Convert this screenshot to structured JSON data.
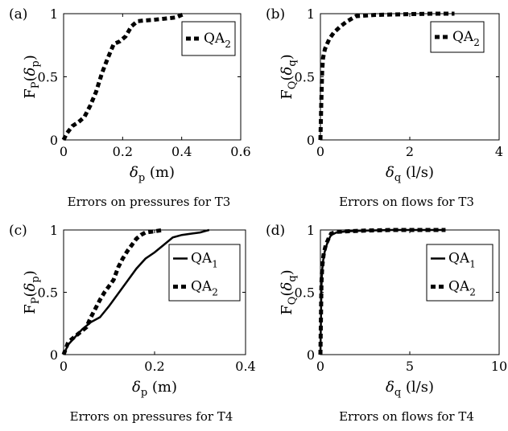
{
  "chart_data": [
    {
      "type": "line",
      "panel_label": "(a)",
      "ylabel_main": "F",
      "ylabel_sub": "P",
      "ylabel_arg": "δ",
      "ylabel_arg_sub": "p",
      "xlabel_main": "δ",
      "xlabel_sub": "p",
      "xlabel_unit": " (m)",
      "caption": "Errors on pressures for T3",
      "xlim": [
        0,
        0.6
      ],
      "ylim": [
        0,
        1
      ],
      "xticks": [
        "0",
        "0.2",
        "0.4",
        "0.6"
      ],
      "xtick_values": [
        0,
        0.2,
        0.4,
        0.6
      ],
      "yticks": [
        "0",
        "0.5",
        "1"
      ],
      "ytick_values": [
        0,
        0.5,
        1
      ],
      "legend_position": "top-right",
      "series": [
        {
          "name": "QA",
          "name_sub": "2",
          "style": "dashed",
          "x": [
            0,
            0.01,
            0.03,
            0.05,
            0.07,
            0.09,
            0.11,
            0.13,
            0.15,
            0.17,
            0.19,
            0.21,
            0.23,
            0.25,
            0.27,
            0.3,
            0.34,
            0.38,
            0.41
          ],
          "y": [
            0,
            0.05,
            0.11,
            0.14,
            0.18,
            0.27,
            0.38,
            0.53,
            0.65,
            0.76,
            0.78,
            0.82,
            0.9,
            0.94,
            0.945,
            0.95,
            0.96,
            0.97,
            1.0
          ]
        }
      ]
    },
    {
      "type": "line",
      "panel_label": "(b)",
      "ylabel_main": "F",
      "ylabel_sub": "Q",
      "ylabel_arg": "δ",
      "ylabel_arg_sub": "q",
      "xlabel_main": "δ",
      "xlabel_sub": "q",
      "xlabel_unit": " (l/s)",
      "caption": "Errors on flows for T3",
      "xlim": [
        0,
        4
      ],
      "ylim": [
        0,
        1
      ],
      "xticks": [
        "0",
        "2",
        "4"
      ],
      "xtick_values": [
        0,
        2,
        4
      ],
      "yticks": [
        "0",
        "0.5",
        "1"
      ],
      "ytick_values": [
        0,
        0.5,
        1
      ],
      "legend_position": "top-right",
      "series": [
        {
          "name": "QA",
          "name_sub": "2",
          "style": "dashed",
          "x": [
            0,
            0.02,
            0.04,
            0.06,
            0.1,
            0.15,
            0.2,
            0.3,
            0.45,
            0.6,
            0.8,
            1.2,
            1.8,
            2.5,
            3.0
          ],
          "y": [
            0,
            0.3,
            0.55,
            0.65,
            0.72,
            0.76,
            0.8,
            0.85,
            0.9,
            0.94,
            0.98,
            0.99,
            0.995,
            1.0,
            1.0
          ]
        }
      ]
    },
    {
      "type": "line",
      "panel_label": "(c)",
      "ylabel_main": "F",
      "ylabel_sub": "P",
      "ylabel_arg": "δ",
      "ylabel_arg_sub": "p",
      "xlabel_main": "δ",
      "xlabel_sub": "p",
      "xlabel_unit": " (m)",
      "caption": "Errors on pressures for T4",
      "xlim": [
        0,
        0.4
      ],
      "ylim": [
        0,
        1
      ],
      "xticks": [
        "0",
        "0.2",
        "0.4"
      ],
      "xtick_values": [
        0,
        0.2,
        0.4
      ],
      "yticks": [
        "0",
        "0.5",
        "1"
      ],
      "ytick_values": [
        0,
        0.5,
        1
      ],
      "legend_position": "top-right",
      "series": [
        {
          "name": "QA",
          "name_sub": "1",
          "style": "solid",
          "x": [
            0,
            0.01,
            0.02,
            0.04,
            0.06,
            0.08,
            0.1,
            0.12,
            0.14,
            0.16,
            0.18,
            0.2,
            0.22,
            0.24,
            0.26,
            0.28,
            0.3,
            0.32
          ],
          "y": [
            0,
            0.08,
            0.12,
            0.2,
            0.26,
            0.3,
            0.39,
            0.49,
            0.59,
            0.69,
            0.77,
            0.82,
            0.88,
            0.94,
            0.96,
            0.97,
            0.98,
            1.0
          ]
        },
        {
          "name": "QA",
          "name_sub": "2",
          "style": "dashed",
          "x": [
            0,
            0.01,
            0.03,
            0.05,
            0.06,
            0.07,
            0.08,
            0.09,
            0.1,
            0.11,
            0.12,
            0.13,
            0.14,
            0.15,
            0.16,
            0.17,
            0.18,
            0.2,
            0.22
          ],
          "y": [
            0,
            0.1,
            0.16,
            0.22,
            0.3,
            0.37,
            0.44,
            0.5,
            0.55,
            0.6,
            0.7,
            0.77,
            0.83,
            0.88,
            0.93,
            0.96,
            0.98,
            0.99,
            1.0
          ]
        }
      ]
    },
    {
      "type": "line",
      "panel_label": "(d)",
      "ylabel_main": "F",
      "ylabel_sub": "Q",
      "ylabel_arg": "δ",
      "ylabel_arg_sub": "q",
      "xlabel_main": "δ",
      "xlabel_sub": "q",
      "xlabel_unit": " (l/s)",
      "caption": "Errors on flows for T4",
      "xlim": [
        0,
        10
      ],
      "ylim": [
        0,
        1
      ],
      "xticks": [
        "0",
        "5",
        "10"
      ],
      "xtick_values": [
        0,
        5,
        10
      ],
      "yticks": [
        "0",
        "0.5",
        "1"
      ],
      "ytick_values": [
        0,
        0.5,
        1
      ],
      "legend_position": "top-right",
      "series": [
        {
          "name": "QA",
          "name_sub": "1",
          "style": "solid",
          "x": [
            0,
            0.03,
            0.06,
            0.1,
            0.15,
            0.2,
            0.3,
            0.45,
            0.6,
            0.9,
            1.5,
            2.5,
            4,
            5.5,
            7
          ],
          "y": [
            0,
            0.3,
            0.55,
            0.68,
            0.75,
            0.8,
            0.86,
            0.92,
            0.96,
            0.98,
            0.99,
            0.995,
            1.0,
            1.0,
            1.0
          ]
        },
        {
          "name": "QA",
          "name_sub": "2",
          "style": "dashed",
          "x": [
            0,
            0.03,
            0.06,
            0.1,
            0.15,
            0.2,
            0.3,
            0.45,
            0.6,
            0.9,
            1.5,
            2.5,
            4,
            5.5,
            7
          ],
          "y": [
            0,
            0.32,
            0.58,
            0.7,
            0.77,
            0.82,
            0.88,
            0.93,
            0.97,
            0.985,
            0.99,
            0.995,
            1.0,
            1.0,
            1.0
          ]
        }
      ]
    }
  ]
}
